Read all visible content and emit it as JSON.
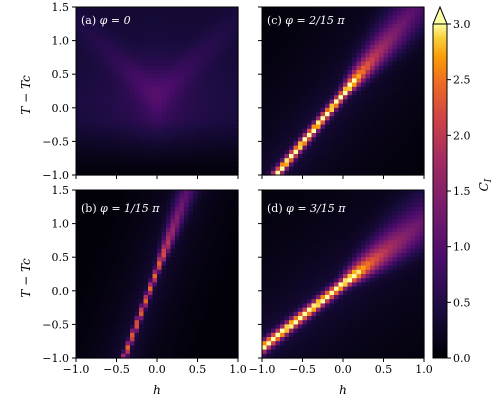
{
  "chart_data": {
    "type": "heatmap",
    "panels": [
      {
        "label": "(a)",
        "phi": "φ = 0",
        "slope": 0,
        "intercept": 0.1,
        "intensity": 0.5
      },
      {
        "label": "(c)",
        "phi": "φ = 2/15 π",
        "slope": 1.45,
        "intercept": 0.2,
        "intensity": 3.0
      },
      {
        "label": "(b)",
        "phi": "φ = 1/15 π",
        "slope": 3.2,
        "intercept": 0.3,
        "intensity": 2.2
      },
      {
        "label": "(d)",
        "phi": "φ = 3/15 π",
        "slope": 0.95,
        "intercept": 0.1,
        "intensity": 3.0
      }
    ],
    "xlabel": "h",
    "ylabel": "T − Tc",
    "colorbar_label": "C",
    "colorbar_label_sub": "I",
    "xlim": [
      -1.0,
      1.0
    ],
    "ylim": [
      -1.0,
      1.5
    ],
    "clim": [
      0.0,
      3.0
    ],
    "x_ticks": [
      "−1.0",
      "−0.5",
      "0.0",
      "0.5",
      "1.0"
    ],
    "y_ticks": [
      "1.5",
      "1.0",
      "0.5",
      "0.0",
      "−0.5",
      "−1.0"
    ],
    "cbar_ticks": [
      "3.0",
      "2.5",
      "2.0",
      "1.5",
      "1.0",
      "0.5",
      "0.0"
    ],
    "colormap": "inferno",
    "colorbar_extend": "max",
    "grid": false
  }
}
